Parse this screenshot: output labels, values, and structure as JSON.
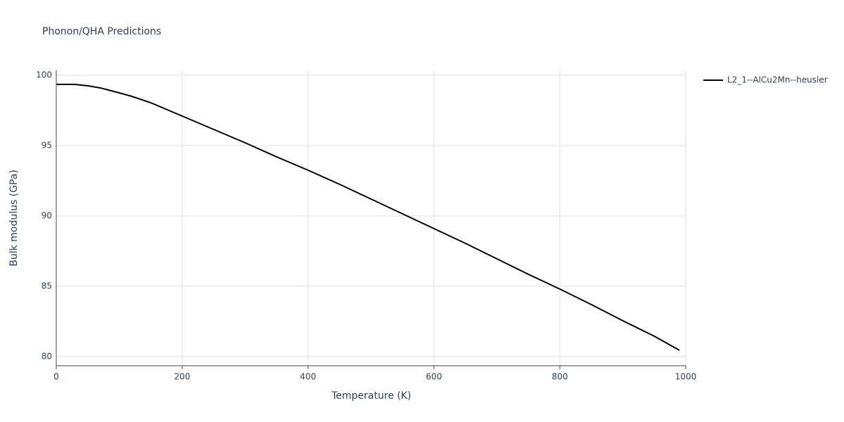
{
  "chart_data": {
    "type": "line",
    "title": "Phonon/QHA Predictions",
    "x_label": "Temperature (K)",
    "y_label": "Bulk modulus (GPa)",
    "x": [
      0,
      30,
      50,
      70,
      100,
      120,
      150,
      200,
      250,
      300,
      350,
      400,
      450,
      500,
      550,
      600,
      650,
      700,
      750,
      800,
      850,
      900,
      950,
      990
    ],
    "series": [
      {
        "name": "L2_1--AlCu2Mn--heusler",
        "color": "#000000",
        "values": [
          99.35,
          99.35,
          99.25,
          99.1,
          98.75,
          98.5,
          98.05,
          97.1,
          96.15,
          95.2,
          94.2,
          93.25,
          92.25,
          91.2,
          90.15,
          89.1,
          88.05,
          86.95,
          85.85,
          84.8,
          83.7,
          82.55,
          81.45,
          80.45
        ]
      }
    ],
    "xlim": [
      0,
      1000
    ],
    "xticks": [
      0,
      200,
      400,
      600,
      800,
      1000
    ],
    "ylim": [
      79.35,
      100.35
    ],
    "yticks": [
      80,
      85,
      90,
      95,
      100
    ],
    "grid": true,
    "legend": "right"
  }
}
